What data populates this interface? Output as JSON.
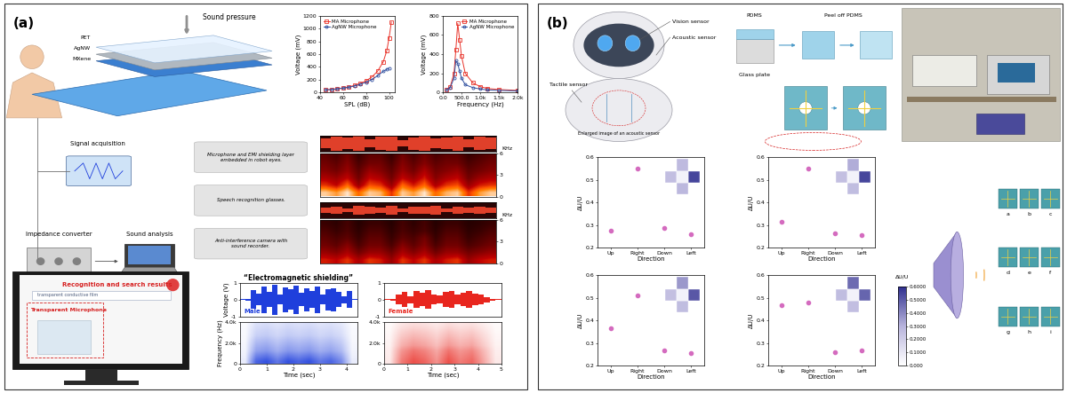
{
  "panel_a": {
    "label": "(a)",
    "sound_pressure": "Sound pressure",
    "layers": [
      "PET",
      "AgNW",
      "MXene"
    ],
    "signal_acquisition": "Signal acquisition",
    "impedance_converter": "Impedance converter",
    "sound_analysis": "Sound analysis",
    "applications": [
      "Microphone and EMI shielding layer\nembedded in robot eyes.",
      "Speech recognition glasses.",
      "Anti-interference camera with\nsound recorder."
    ],
    "screen": {
      "result": "Recognition and search results",
      "search_text": "transparent conductive film",
      "microphone": "Transparent Microphone"
    }
  },
  "panel_b": {
    "label": "(b)",
    "robot": {
      "vision": "Vision sensor",
      "acoustic": "Acoustic sensor",
      "tactile": "Tactile sensor",
      "enlarged": "Enlarged image of an acoustic sensor"
    },
    "fabrication": {
      "pdms": "PDMS",
      "glass": "Glass plate",
      "peel": "Peel off PDMS"
    },
    "sensor_images": [
      "a",
      "b",
      "c",
      "d",
      "e",
      "f",
      "g",
      "h",
      "i"
    ],
    "colorbar": {
      "label": "ΔU/U",
      "range": [
        0,
        0.6
      ],
      "ticks": [
        {
          "value": 0,
          "label": "0.000"
        },
        {
          "value": 0.1,
          "label": "0.1000"
        },
        {
          "value": 0.2,
          "label": "0.2000"
        },
        {
          "value": 0.3,
          "label": "0.3000"
        },
        {
          "value": 0.4,
          "label": "0.4000"
        },
        {
          "value": 0.5,
          "label": "0.5000"
        },
        {
          "value": 0.6,
          "label": "0.6000"
        }
      ]
    }
  },
  "chart_data": [
    {
      "type": "line",
      "x_label": "SPL (dB)",
      "y_label": "Voltage (mV)",
      "xlim": [
        40,
        105
      ],
      "xticks": [
        40,
        60,
        80,
        100
      ],
      "ylim": [
        0,
        1200
      ],
      "yticks": [
        0,
        200,
        400,
        600,
        800,
        1000,
        1200
      ],
      "legend": "upper left",
      "series": [
        {
          "name": "MA Microphone",
          "color": "#e8332a",
          "marker": "square",
          "x": [
            45,
            50,
            55,
            60,
            65,
            70,
            75,
            80,
            85,
            90,
            95,
            98,
            100,
            102
          ],
          "values": [
            40,
            45,
            55,
            70,
            85,
            110,
            140,
            180,
            240,
            330,
            480,
            650,
            850,
            1100
          ]
        },
        {
          "name": "AgNW Microphone",
          "color": "#2f4f9f",
          "marker": "circle",
          "x": [
            45,
            50,
            55,
            60,
            65,
            70,
            75,
            80,
            85,
            90,
            95,
            98,
            100
          ],
          "values": [
            40,
            45,
            55,
            65,
            80,
            100,
            125,
            160,
            200,
            260,
            330,
            360,
            380
          ]
        }
      ]
    },
    {
      "type": "line",
      "x_label": "Frequency (Hz)",
      "y_label": "Voltage (mV)",
      "xlim": [
        0,
        2000
      ],
      "xticks": [
        {
          "value": 0,
          "label": "0.0"
        },
        {
          "value": 500,
          "label": "500.0"
        },
        {
          "value": 1000,
          "label": "1.0k"
        },
        {
          "value": 1500,
          "label": "1.5k"
        },
        {
          "value": 2000,
          "label": "2.0k"
        }
      ],
      "ylim": [
        0,
        800
      ],
      "yticks": [
        0,
        200,
        400,
        600,
        800
      ],
      "legend": "upper right",
      "series": [
        {
          "name": "MA Microphone",
          "color": "#e8332a",
          "marker": "square",
          "x": [
            100,
            200,
            300,
            350,
            400,
            450,
            500,
            600,
            800,
            1000,
            1200,
            1500,
            2000
          ],
          "values": [
            30,
            60,
            200,
            450,
            720,
            550,
            380,
            200,
            100,
            60,
            40,
            30,
            20
          ]
        },
        {
          "name": "AgNW Microphone",
          "color": "#2f4f9f",
          "marker": "circle",
          "x": [
            100,
            200,
            300,
            350,
            400,
            450,
            500,
            600,
            800,
            1000,
            1200,
            1500,
            2000
          ],
          "values": [
            25,
            50,
            150,
            330,
            300,
            220,
            150,
            80,
            50,
            35,
            25,
            20,
            15
          ]
        }
      ]
    },
    {
      "type": "spectrogram",
      "y_label": "KHz",
      "xlim": [
        0,
        16
      ],
      "ylim": [
        0,
        6
      ],
      "yticks": [
        0,
        3,
        6
      ],
      "tick_labels": "y",
      "clim": [
        0,
        1
      ],
      "cells": [
        [
          0.9,
          0.8,
          0.95,
          0.7,
          0.9,
          0.85,
          0.6,
          0.9,
          0.8,
          0.95,
          0.7,
          0.85,
          0.9,
          0.6,
          0.8,
          0.9
        ],
        [
          0.6,
          0.5,
          0.7,
          0.4,
          0.65,
          0.6,
          0.4,
          0.7,
          0.55,
          0.7,
          0.45,
          0.6,
          0.65,
          0.4,
          0.55,
          0.6
        ],
        [
          0.45,
          0.4,
          0.5,
          0.3,
          0.5,
          0.45,
          0.3,
          0.5,
          0.4,
          0.55,
          0.35,
          0.45,
          0.5,
          0.3,
          0.4,
          0.45
        ],
        [
          0.35,
          0.3,
          0.4,
          0.25,
          0.4,
          0.35,
          0.25,
          0.4,
          0.3,
          0.45,
          0.3,
          0.35,
          0.4,
          0.25,
          0.3,
          0.35
        ],
        [
          0.3,
          0.25,
          0.35,
          0.2,
          0.3,
          0.3,
          0.2,
          0.35,
          0.25,
          0.35,
          0.25,
          0.3,
          0.3,
          0.2,
          0.25,
          0.3
        ],
        [
          0.25,
          0.2,
          0.3,
          0.15,
          0.25,
          0.25,
          0.15,
          0.3,
          0.2,
          0.3,
          0.2,
          0.25,
          0.25,
          0.15,
          0.2,
          0.25
        ]
      ],
      "waveform": {
        "values": [
          0.6,
          0.9,
          0.7,
          0.95,
          0.5,
          0.85,
          0.9,
          0.4,
          0.8,
          0.95,
          0.6,
          0.7,
          0.9,
          0.5,
          0.85,
          0.7
        ],
        "ylim": [
          -1,
          1
        ],
        "color": "#e0402a",
        "tick_labels": false
      }
    },
    {
      "type": "spectrogram",
      "y_label": "KHz",
      "xlim": [
        0,
        16
      ],
      "ylim": [
        0,
        6
      ],
      "yticks": [
        0,
        3,
        6
      ],
      "tick_labels": "y",
      "clim": [
        0,
        1
      ],
      "cells": [
        [
          0.55,
          0.5,
          0.6,
          0.45,
          0.6,
          0.55,
          0.4,
          0.6,
          0.5,
          0.6,
          0.45,
          0.55,
          0.6,
          0.4,
          0.5,
          0.55
        ],
        [
          0.4,
          0.35,
          0.45,
          0.3,
          0.4,
          0.4,
          0.3,
          0.45,
          0.35,
          0.45,
          0.3,
          0.4,
          0.4,
          0.3,
          0.35,
          0.4
        ],
        [
          0.3,
          0.25,
          0.35,
          0.2,
          0.3,
          0.3,
          0.2,
          0.35,
          0.25,
          0.35,
          0.2,
          0.3,
          0.3,
          0.2,
          0.25,
          0.3
        ],
        [
          0.25,
          0.2,
          0.25,
          0.15,
          0.25,
          0.25,
          0.15,
          0.25,
          0.2,
          0.3,
          0.15,
          0.25,
          0.25,
          0.15,
          0.2,
          0.25
        ],
        [
          0.2,
          0.15,
          0.2,
          0.12,
          0.2,
          0.2,
          0.12,
          0.2,
          0.15,
          0.2,
          0.12,
          0.2,
          0.2,
          0.12,
          0.15,
          0.2
        ],
        [
          0.15,
          0.12,
          0.18,
          0.1,
          0.15,
          0.15,
          0.1,
          0.18,
          0.12,
          0.18,
          0.1,
          0.15,
          0.15,
          0.1,
          0.12,
          0.15
        ]
      ],
      "waveform": {
        "values": [
          0.3,
          0.5,
          0.2,
          0.6,
          0.45,
          0.3,
          0.55,
          0.2,
          0.5,
          0.4,
          0.6,
          0.25,
          0.45,
          0.35,
          0.5,
          0.3
        ],
        "ylim": [
          -1,
          1
        ],
        "color": "#e0402a",
        "tick_labels": false
      }
    },
    {
      "type": "waveform",
      "title": "“Electromagnetic shielding”",
      "y_label": "Voltage (V)",
      "annotation": "Male",
      "color": "#1f3fdc",
      "xlim": [
        0,
        4.4
      ],
      "ylim": [
        -1,
        1
      ],
      "yticks": [
        -1,
        0,
        1
      ],
      "tick_labels": "y",
      "bins": [
        0,
        0.2,
        0.4,
        0.6,
        0.8,
        1.0,
        1.2,
        1.4,
        1.6,
        1.8,
        2.0,
        2.2,
        2.4,
        2.6,
        2.8,
        3.0,
        3.2,
        3.4,
        3.6,
        3.8,
        4.0,
        4.2,
        4.4
      ],
      "values": [
        0.02,
        0.05,
        0.55,
        0.35,
        0.8,
        0.45,
        0.9,
        0.3,
        0.75,
        0.6,
        0.85,
        0.4,
        0.7,
        0.5,
        0.8,
        0.3,
        0.65,
        0.7,
        0.45,
        0.2,
        0.5,
        0.03
      ]
    },
    {
      "type": "waveform",
      "annotation": "Female",
      "color": "#e8261e",
      "xlim": [
        0,
        5
      ],
      "ylim": [
        -1,
        1
      ],
      "yticks": [
        -1,
        0,
        1
      ],
      "tick_labels": "y",
      "bins": [
        0,
        0.25,
        0.5,
        0.75,
        1.0,
        1.25,
        1.5,
        1.75,
        2.0,
        2.25,
        2.5,
        2.75,
        3.0,
        3.25,
        3.5,
        3.75,
        4.0,
        4.25,
        4.5,
        4.75,
        5.0
      ],
      "values": [
        0.02,
        0.05,
        0.3,
        0.45,
        0.2,
        0.5,
        0.4,
        0.55,
        0.3,
        0.25,
        0.45,
        0.5,
        0.3,
        0.4,
        0.5,
        0.35,
        0.3,
        0.15,
        0.05,
        0.02
      ]
    },
    {
      "type": "spectrogram",
      "x_label": "Time (sec)",
      "y_label": "Frequency (Hz)",
      "color": "#1f3fdc",
      "xlim": [
        0,
        4.4
      ],
      "xticks": [
        0,
        1,
        2,
        3,
        4
      ],
      "ylim": [
        0,
        4000
      ],
      "yticks": [
        0,
        {
          "value": 2000,
          "label": "2.0k"
        },
        {
          "value": 4000,
          "label": "4.0k"
        }
      ],
      "clim": [
        0,
        1
      ],
      "cells": [
        [
          0.1,
          0.8,
          0.9,
          0.7,
          0.9,
          0.8,
          0.9,
          0.7,
          0.8,
          0.6,
          0.1
        ],
        [
          0.08,
          0.64,
          0.72,
          0.56,
          0.72,
          0.64,
          0.72,
          0.56,
          0.64,
          0.48,
          0.08
        ],
        [
          0.06,
          0.48,
          0.54,
          0.42,
          0.54,
          0.48,
          0.54,
          0.42,
          0.48,
          0.36,
          0.06
        ],
        [
          0.05,
          0.4,
          0.45,
          0.35,
          0.45,
          0.4,
          0.45,
          0.35,
          0.4,
          0.3,
          0.05
        ],
        [
          0.04,
          0.32,
          0.36,
          0.28,
          0.36,
          0.32,
          0.36,
          0.28,
          0.32,
          0.24,
          0.04
        ],
        [
          0.03,
          0.24,
          0.27,
          0.21,
          0.27,
          0.24,
          0.27,
          0.21,
          0.24,
          0.18,
          0.03
        ],
        [
          0.03,
          0.2,
          0.23,
          0.18,
          0.23,
          0.2,
          0.23,
          0.18,
          0.2,
          0.15,
          0.03
        ],
        [
          0.02,
          0.16,
          0.18,
          0.14,
          0.18,
          0.16,
          0.18,
          0.14,
          0.16,
          0.12,
          0.02
        ]
      ]
    },
    {
      "type": "spectrogram",
      "x_label": "Time (sec)",
      "color": "#e8261e",
      "xlim": [
        0,
        5
      ],
      "xticks": [
        0,
        1,
        2,
        3,
        4,
        5
      ],
      "ylim": [
        0,
        4000
      ],
      "yticks": [
        0,
        {
          "value": 2000,
          "label": "2.0k"
        },
        {
          "value": 4000,
          "label": "4.0k"
        }
      ],
      "clim": [
        0,
        1
      ],
      "cells": [
        [
          0.1,
          0.6,
          0.8,
          0.7,
          0.5,
          0.8,
          0.6,
          0.7,
          0.4,
          0.1
        ],
        [
          0.09,
          0.54,
          0.72,
          0.63,
          0.45,
          0.72,
          0.54,
          0.63,
          0.36,
          0.09
        ],
        [
          0.08,
          0.48,
          0.64,
          0.56,
          0.4,
          0.64,
          0.48,
          0.56,
          0.32,
          0.08
        ],
        [
          0.06,
          0.36,
          0.48,
          0.42,
          0.3,
          0.48,
          0.36,
          0.42,
          0.24,
          0.06
        ],
        [
          0.05,
          0.3,
          0.4,
          0.35,
          0.25,
          0.4,
          0.3,
          0.35,
          0.2,
          0.05
        ],
        [
          0.04,
          0.24,
          0.32,
          0.28,
          0.2,
          0.32,
          0.24,
          0.28,
          0.16,
          0.04
        ],
        [
          0.03,
          0.18,
          0.24,
          0.21,
          0.15,
          0.24,
          0.18,
          0.21,
          0.12,
          0.03
        ],
        [
          0.02,
          0.12,
          0.16,
          0.14,
          0.1,
          0.16,
          0.12,
          0.14,
          0.08,
          0.02
        ]
      ]
    },
    {
      "type": "scatter",
      "x_label": "Direction",
      "y_label": "ΔU/U",
      "color": "#d46bbf",
      "marker": "circle",
      "categories": [
        "Up",
        "Right",
        "Down",
        "Left"
      ],
      "values": [
        0.275,
        0.55,
        0.285,
        0.26
      ],
      "ylim": [
        0.2,
        0.6
      ],
      "yticks": [
        0.2,
        0.3,
        0.4,
        0.5,
        0.6
      ]
    },
    {
      "type": "scatter",
      "x_label": "Direction",
      "y_label": "ΔU/U",
      "color": "#d46bbf",
      "marker": "circle",
      "categories": [
        "Up",
        "Right",
        "Down",
        "Left"
      ],
      "values": [
        0.315,
        0.55,
        0.265,
        0.255
      ],
      "ylim": [
        0.2,
        0.6
      ],
      "yticks": [
        0.2,
        0.3,
        0.4,
        0.5,
        0.6
      ]
    },
    {
      "type": "scatter",
      "x_label": "Direction",
      "y_label": "ΔU/U",
      "color": "#d46bbf",
      "marker": "circle",
      "categories": [
        "Up",
        "Right",
        "Down",
        "Left"
      ],
      "values": [
        0.365,
        0.51,
        0.265,
        0.255
      ],
      "ylim": [
        0.2,
        0.6
      ],
      "yticks": [
        0.2,
        0.3,
        0.4,
        0.5,
        0.6
      ]
    },
    {
      "type": "scatter",
      "x_label": "Direction",
      "y_label": "ΔU/U",
      "color": "#d46bbf",
      "marker": "circle",
      "categories": [
        "Up",
        "Right",
        "Down",
        "Left"
      ],
      "values": [
        0.465,
        0.48,
        0.26,
        0.265
      ],
      "ylim": [
        0.2,
        0.6
      ],
      "yticks": [
        0.2,
        0.3,
        0.4,
        0.5,
        0.6
      ]
    }
  ]
}
